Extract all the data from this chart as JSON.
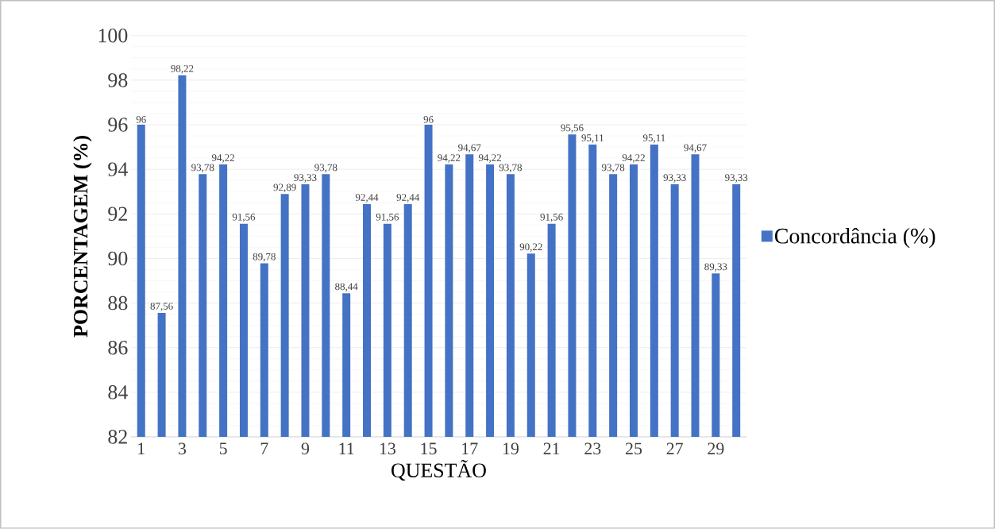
{
  "chart_data": {
    "type": "bar",
    "xlabel": "QUESTÃO",
    "ylabel": "PORCENTAGEM (%)",
    "categories": [
      "1",
      null,
      "3",
      null,
      "5",
      null,
      "7",
      null,
      "9",
      null,
      "11",
      null,
      "13",
      null,
      "15",
      null,
      "17",
      null,
      "19",
      null,
      "21",
      null,
      "23",
      null,
      "25",
      null,
      "27",
      null,
      "29",
      null
    ],
    "series": [
      {
        "name": "Concordância (%)",
        "color": "#4472c4",
        "values": [
          96,
          87.56,
          98.22,
          93.78,
          94.22,
          91.56,
          89.78,
          92.89,
          93.33,
          93.78,
          88.44,
          92.44,
          91.56,
          92.44,
          96,
          94.22,
          94.67,
          94.22,
          93.78,
          90.22,
          91.56,
          95.56,
          95.11,
          93.78,
          94.22,
          95.11,
          93.33,
          94.67,
          89.33,
          93.33
        ],
        "value_labels": [
          "96",
          "87,56",
          "98,22",
          "93,78",
          "94,22",
          "91,56",
          "89,78",
          "92,89",
          "93,33",
          "93,78",
          "88,44",
          "92,44",
          "91,56",
          "92,44",
          "96",
          "94,22",
          "94,67",
          "94,22",
          "93,78",
          "90,22",
          "91,56",
          "95,56",
          "95,11",
          "93,78",
          "94,22",
          "95,11",
          "93,33",
          "94,67",
          "89,33",
          "93,33"
        ]
      }
    ],
    "ylim": [
      82,
      100
    ],
    "yticks": [
      82,
      84,
      86,
      88,
      90,
      92,
      94,
      96,
      98,
      100
    ],
    "grid": "y",
    "legend": "right"
  }
}
